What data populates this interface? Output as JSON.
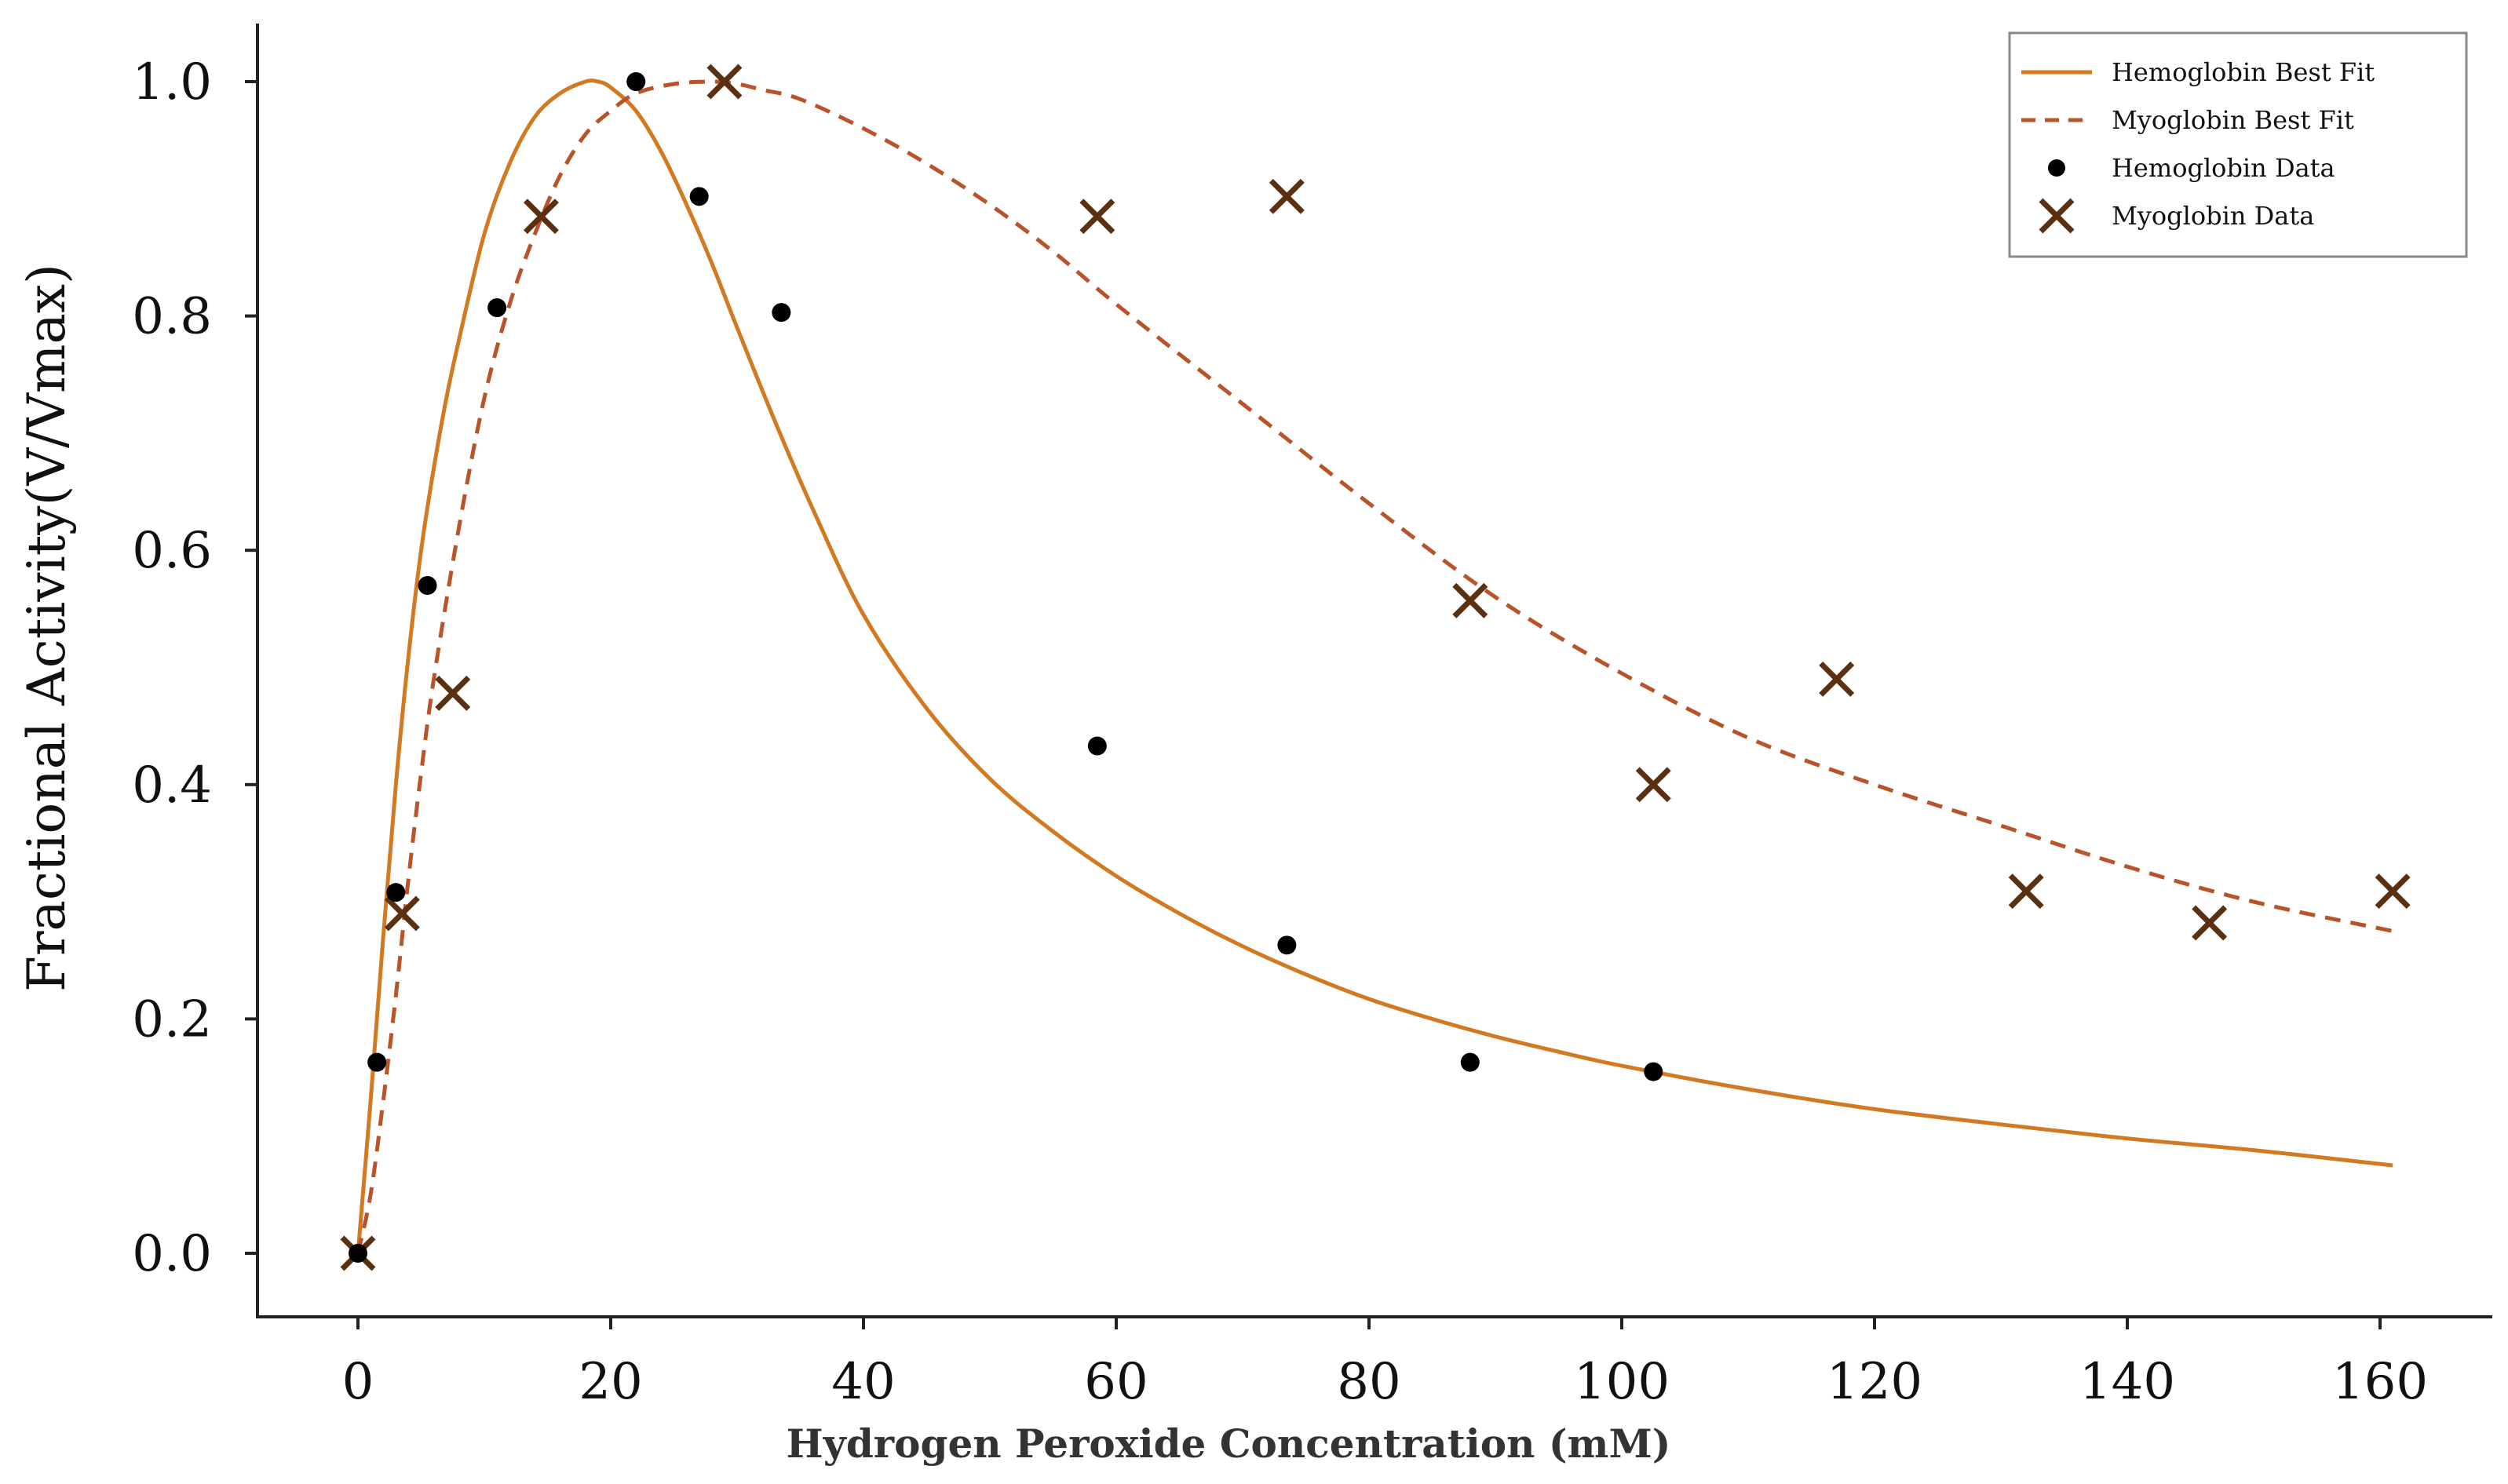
{
  "chart_data": {
    "type": "scatter",
    "title": "",
    "xlabel": "Hydrogen Peroxide Concentration (mM)",
    "ylabel": "Fractional Activity(V/Vmax)",
    "xlim": [
      -10,
      168
    ],
    "ylim": [
      -0.05,
      1.05
    ],
    "xticks": [
      0,
      20,
      40,
      60,
      80,
      100,
      120,
      140,
      160
    ],
    "yticks": [
      0.0,
      0.2,
      0.4,
      0.6,
      0.8,
      1.0
    ],
    "ytick_labels": [
      "0.0",
      "0.2",
      "0.4",
      "0.6",
      "0.8",
      "1.0"
    ],
    "legend_position": "top-right",
    "colors": {
      "hemoglobin_fit": "#d17a22",
      "myoglobin_fit": "#b8532a",
      "hemoglobin_data": "#000000",
      "myoglobin_data": "#5a3010",
      "axis": "#222222"
    },
    "series": [
      {
        "name": "Hemoglobin Best Fit",
        "kind": "line",
        "style": "solid",
        "x": [
          0,
          1,
          2,
          3,
          4,
          5,
          6,
          7,
          8,
          10,
          12,
          14,
          16,
          18,
          19,
          20,
          22,
          24,
          26,
          28,
          30,
          33,
          36,
          40,
          45,
          50,
          55,
          60,
          65,
          70,
          75,
          80,
          85,
          90,
          95,
          100,
          110,
          120,
          130,
          140,
          150,
          161
        ],
        "y": [
          0.0,
          0.13,
          0.27,
          0.4,
          0.51,
          0.6,
          0.67,
          0.73,
          0.78,
          0.87,
          0.93,
          0.97,
          0.99,
          1.0,
          1.0,
          0.995,
          0.975,
          0.94,
          0.895,
          0.845,
          0.79,
          0.71,
          0.635,
          0.545,
          0.465,
          0.405,
          0.36,
          0.322,
          0.29,
          0.262,
          0.238,
          0.217,
          0.2,
          0.185,
          0.172,
          0.16,
          0.14,
          0.123,
          0.11,
          0.098,
          0.088,
          0.075
        ]
      },
      {
        "name": "Myoglobin Best Fit",
        "kind": "line",
        "style": "dashed",
        "x": [
          0,
          1,
          2,
          3,
          4,
          5,
          6,
          8,
          10,
          12,
          14,
          16,
          18,
          20,
          22,
          25,
          28,
          30,
          32,
          35,
          40,
          45,
          50,
          55,
          60,
          70,
          80,
          90,
          100,
          110,
          120,
          130,
          140,
          150,
          161
        ],
        "y": [
          0.0,
          0.05,
          0.13,
          0.22,
          0.32,
          0.41,
          0.49,
          0.62,
          0.73,
          0.81,
          0.87,
          0.92,
          0.955,
          0.975,
          0.99,
          0.998,
          1.0,
          0.998,
          0.993,
          0.985,
          0.96,
          0.93,
          0.895,
          0.855,
          0.81,
          0.725,
          0.64,
          0.56,
          0.495,
          0.44,
          0.4,
          0.365,
          0.33,
          0.3,
          0.275
        ]
      },
      {
        "name": "Hemoglobin Data",
        "kind": "scatter",
        "marker": "dot",
        "x": [
          0,
          1.5,
          3,
          5.5,
          11,
          22,
          27,
          33.5,
          58.5,
          73.5,
          88,
          102.5
        ],
        "y": [
          0.0,
          0.163,
          0.308,
          0.57,
          0.807,
          1.0,
          0.902,
          0.803,
          0.433,
          0.263,
          0.163,
          0.155
        ]
      },
      {
        "name": "Myoglobin Data",
        "kind": "scatter",
        "marker": "x",
        "x": [
          0,
          3.5,
          7.5,
          14.5,
          29,
          58.5,
          73.5,
          88,
          102.5,
          117,
          132,
          146.5,
          161
        ],
        "y": [
          0.0,
          0.29,
          0.478,
          0.885,
          1.0,
          0.885,
          0.902,
          0.557,
          0.4,
          0.49,
          0.309,
          0.282,
          0.309
        ]
      }
    ]
  }
}
